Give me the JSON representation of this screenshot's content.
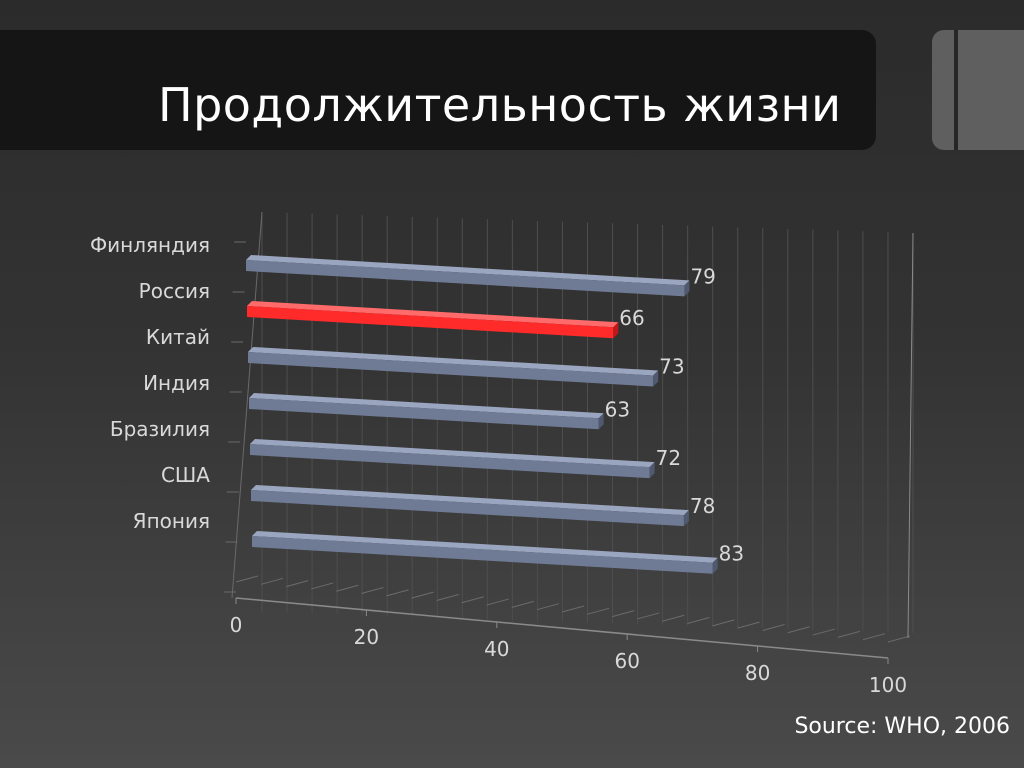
{
  "slide": {
    "title": "Продолжительность жизни",
    "source": "Source: WHO, 2006"
  },
  "colors": {
    "bar": "#6f7b95",
    "highlight": "#ff2a2a"
  },
  "chart_data": {
    "type": "bar",
    "orientation": "horizontal",
    "style": "3d-perspective",
    "categories": [
      "Финляндия",
      "Россия",
      "Китай",
      "Индия",
      "Бразилия",
      "США",
      "Япония"
    ],
    "values": [
      79,
      66,
      73,
      63,
      72,
      78,
      83
    ],
    "highlight_category": "Россия",
    "xlim": [
      0,
      100
    ],
    "xticks": [
      0,
      20,
      40,
      60,
      80,
      100
    ],
    "grid": true,
    "legend": "none"
  }
}
